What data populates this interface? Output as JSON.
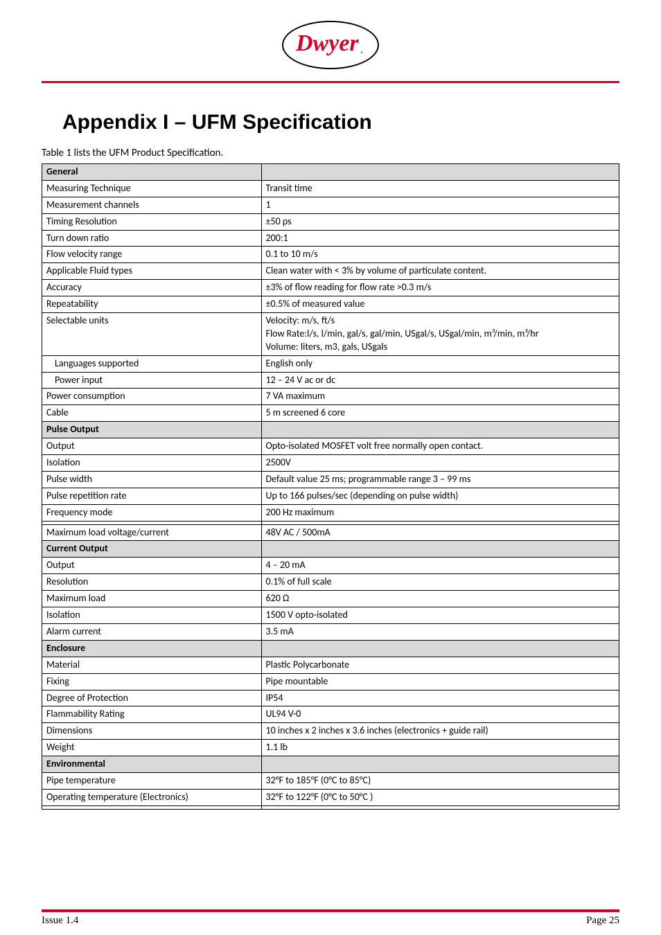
{
  "logo": {
    "brand": "Dwyer",
    "reg": "®"
  },
  "title": "Appendix I – UFM Specification",
  "intro": "Table 1 lists the UFM Product Specification.",
  "sections": [
    {
      "header": "General",
      "rows": [
        {
          "label": "Measuring Technique",
          "value": "Transit time"
        },
        {
          "label": "Measurement channels",
          "value": "1"
        },
        {
          "label": "Timing Resolution",
          "value": "±50 ps"
        },
        {
          "label": "Turn down ratio",
          "value": "200:1"
        },
        {
          "label": "Flow velocity range",
          "value": "0.1 to 10 m/s"
        },
        {
          "label": "Applicable Fluid types",
          "value": "Clean water with < 3% by volume of particulate content."
        },
        {
          "label": "Accuracy",
          "value": "±3% of flow reading for flow rate >0.3 m/s"
        },
        {
          "label": "Repeatability",
          "value": "±0.5% of measured value"
        },
        {
          "label": "Selectable units",
          "value": "Velocity:    m/s, ft/s<br>Flow Rate:l/s, l/min, gal/s, gal/min, USgal/s, USgal/min, m³/min, m³/hr<br>Volume:    liters, m3, gals, USgals",
          "html": true
        },
        {
          "label": "Languages supported",
          "value": "English only",
          "indent": true
        },
        {
          "label": "Power input",
          "value": "12 – 24 V  ac or dc",
          "indent": true
        },
        {
          "label": "Power consumption",
          "value": "7 VA  maximum"
        },
        {
          "label": "Cable",
          "value": "5 m screened  6 core"
        }
      ]
    },
    {
      "header": "Pulse Output",
      "rows": [
        {
          "label": "Output",
          "value": "Opto-isolated MOSFET volt free normally open contact."
        },
        {
          "label": "Isolation",
          "value": "2500V"
        },
        {
          "label": "Pulse width",
          "value": "Default value 25 ms; programmable range 3 – 99 ms"
        },
        {
          "label": "Pulse repetition rate",
          "value": "Up to 166 pulses/sec (depending on pulse width)"
        },
        {
          "label": "Frequency mode",
          "value": "200 Hz maximum"
        },
        {
          "label": "",
          "value": ""
        },
        {
          "label": "Maximum load voltage/current",
          "value": "48V AC / 500mA"
        }
      ]
    },
    {
      "header": "Current Output",
      "rows": [
        {
          "label": "Output",
          "value": "4 – 20 mA"
        },
        {
          "label": "Resolution",
          "value": "0.1% of full scale"
        },
        {
          "label": "Maximum load",
          "value": "620 Ω"
        },
        {
          "label": "Isolation",
          "value": "1500 V opto-isolated"
        },
        {
          "label": "Alarm current",
          "value": "3.5 mA"
        }
      ]
    },
    {
      "header": "Enclosure",
      "rows": [
        {
          "label": "Material",
          "value": "Plastic  Polycarbonate"
        },
        {
          "label": "Fixing",
          "value": "Pipe mountable"
        },
        {
          "label": "Degree of Protection",
          "value": "IP54"
        },
        {
          "label": "Flammability Rating",
          "value": "UL94 V-0"
        },
        {
          "label": "Dimensions",
          "value": "10 inches x 2 inches x 3.6 inches (electronics + guide rail)"
        },
        {
          "label": "Weight",
          "value": "1.1 lb"
        }
      ]
    },
    {
      "header": "Environmental",
      "rows": [
        {
          "label": "Pipe temperature",
          "value": "32°F to 185°F   (0°C to 85°C)"
        },
        {
          "label": "Operating temperature (Electronics)",
          "value": "32°F to 122°F  (0°C to 50°C )"
        },
        {
          "label": "",
          "value": ""
        }
      ]
    }
  ],
  "footer": {
    "left": "Issue 1.4",
    "right": "Page 25"
  }
}
